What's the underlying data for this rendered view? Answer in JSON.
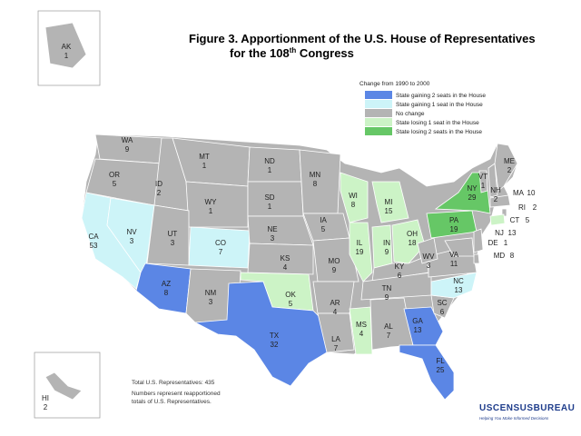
{
  "title": {
    "line1": "Figure 3.  Apportionment of the U.S. House of Representatives",
    "line2": [
      "for the 108",
      "th",
      " Congress"
    ]
  },
  "legend": {
    "title": "Change from 1990 to 2000",
    "items": [
      {
        "label": "State gaining 2 seats in the House",
        "color": "#5b86e5"
      },
      {
        "label": "State gaining 1 seat in the House",
        "color": "#cdf4f8"
      },
      {
        "label": "No change",
        "color": "#b4b4b4"
      },
      {
        "label": "State losing 1 seat in the House",
        "color": "#ccf3c6"
      },
      {
        "label": "State losing 2 seats in the House",
        "color": "#66c766"
      }
    ]
  },
  "states": [
    {
      "abbr": "AK",
      "seats": 1,
      "color": "#b4b4b4"
    },
    {
      "abbr": "HI",
      "seats": 2,
      "color": "#b4b4b4"
    },
    {
      "abbr": "WA",
      "seats": 9,
      "color": "#b4b4b4"
    },
    {
      "abbr": "OR",
      "seats": 5,
      "color": "#b4b4b4"
    },
    {
      "abbr": "CA",
      "seats": 53,
      "color": "#cdf4f8"
    },
    {
      "abbr": "NV",
      "seats": 3,
      "color": "#cdf4f8"
    },
    {
      "abbr": "ID",
      "seats": 2,
      "color": "#b4b4b4"
    },
    {
      "abbr": "MT",
      "seats": 1,
      "color": "#b4b4b4"
    },
    {
      "abbr": "WY",
      "seats": 1,
      "color": "#b4b4b4"
    },
    {
      "abbr": "UT",
      "seats": 3,
      "color": "#b4b4b4"
    },
    {
      "abbr": "CO",
      "seats": 7,
      "color": "#cdf4f8"
    },
    {
      "abbr": "AZ",
      "seats": 8,
      "color": "#5b86e5"
    },
    {
      "abbr": "NM",
      "seats": 3,
      "color": "#b4b4b4"
    },
    {
      "abbr": "ND",
      "seats": 1,
      "color": "#b4b4b4"
    },
    {
      "abbr": "SD",
      "seats": 1,
      "color": "#b4b4b4"
    },
    {
      "abbr": "NE",
      "seats": 3,
      "color": "#b4b4b4"
    },
    {
      "abbr": "KS",
      "seats": 4,
      "color": "#b4b4b4"
    },
    {
      "abbr": "OK",
      "seats": 5,
      "color": "#ccf3c6"
    },
    {
      "abbr": "TX",
      "seats": 32,
      "color": "#5b86e5"
    },
    {
      "abbr": "MN",
      "seats": 8,
      "color": "#b4b4b4"
    },
    {
      "abbr": "IA",
      "seats": 5,
      "color": "#b4b4b4"
    },
    {
      "abbr": "MO",
      "seats": 9,
      "color": "#b4b4b4"
    },
    {
      "abbr": "AR",
      "seats": 4,
      "color": "#b4b4b4"
    },
    {
      "abbr": "LA",
      "seats": 7,
      "color": "#b4b4b4"
    },
    {
      "abbr": "WI",
      "seats": 8,
      "color": "#ccf3c6"
    },
    {
      "abbr": "IL",
      "seats": 19,
      "color": "#ccf3c6"
    },
    {
      "abbr": "MI",
      "seats": 15,
      "color": "#ccf3c6"
    },
    {
      "abbr": "IN",
      "seats": 9,
      "color": "#ccf3c6"
    },
    {
      "abbr": "OH",
      "seats": 18,
      "color": "#ccf3c6"
    },
    {
      "abbr": "KY",
      "seats": 6,
      "color": "#b4b4b4"
    },
    {
      "abbr": "TN",
      "seats": 9,
      "color": "#b4b4b4"
    },
    {
      "abbr": "MS",
      "seats": 4,
      "color": "#ccf3c6"
    },
    {
      "abbr": "AL",
      "seats": 7,
      "color": "#b4b4b4"
    },
    {
      "abbr": "GA",
      "seats": 13,
      "color": "#5b86e5"
    },
    {
      "abbr": "FL",
      "seats": 25,
      "color": "#5b86e5"
    },
    {
      "abbr": "SC",
      "seats": 6,
      "color": "#b4b4b4"
    },
    {
      "abbr": "NC",
      "seats": 13,
      "color": "#cdf4f8"
    },
    {
      "abbr": "VA",
      "seats": 11,
      "color": "#b4b4b4"
    },
    {
      "abbr": "WV",
      "seats": 3,
      "color": "#b4b4b4"
    },
    {
      "abbr": "PA",
      "seats": 19,
      "color": "#66c766"
    },
    {
      "abbr": "NY",
      "seats": 29,
      "color": "#66c766"
    },
    {
      "abbr": "VT",
      "seats": 1,
      "color": "#b4b4b4"
    },
    {
      "abbr": "NH",
      "seats": 2,
      "color": "#b4b4b4"
    },
    {
      "abbr": "ME",
      "seats": 2,
      "color": "#b4b4b4"
    },
    {
      "abbr": "MA",
      "seats": 10,
      "color": "#b4b4b4"
    },
    {
      "abbr": "RI",
      "seats": 2,
      "color": "#b4b4b4"
    },
    {
      "abbr": "CT",
      "seats": 5,
      "color": "#ccf3c6"
    },
    {
      "abbr": "NJ",
      "seats": 13,
      "color": "#b4b4b4"
    },
    {
      "abbr": "DE",
      "seats": 1,
      "color": "#b4b4b4"
    },
    {
      "abbr": "MD",
      "seats": 8,
      "color": "#b4b4b4"
    }
  ],
  "notes": {
    "total": "Total U.S. Representatives: 435",
    "numbers": [
      "Numbers represent reapportioned",
      "totals of U.S. Representatives."
    ]
  },
  "logo": {
    "name": "USCENSUSBUREAU",
    "tagline": "Helping You Make Informed Decisions"
  }
}
